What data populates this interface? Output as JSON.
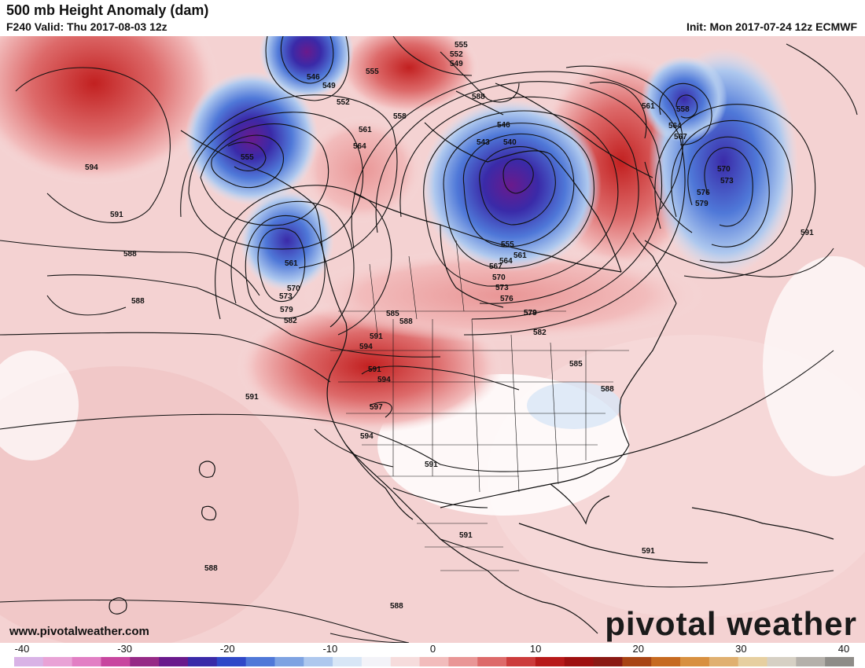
{
  "header": {
    "title": "500 mb Height Anomaly (dam)",
    "valid": "F240 Valid: Thu 2017-08-03 12z",
    "init": "Init: Mon 2017-07-24 12z ECMWF"
  },
  "footer": {
    "website": "www.pivotalweather.com",
    "brand": "pivotal weather"
  },
  "colorbar": {
    "ticks": [
      "-40",
      "-30",
      "-20",
      "-10",
      "0",
      "10",
      "20",
      "30",
      "40"
    ],
    "colors": [
      "#d9b3e6",
      "#e9a3d6",
      "#e27fc4",
      "#c8469f",
      "#962a86",
      "#6a1a8c",
      "#3a2aa8",
      "#2f48c8",
      "#4f78d8",
      "#7ea3e2",
      "#aec8ee",
      "#d8e6f6",
      "#f3f3f8",
      "#f6dcdc",
      "#f2bcbc",
      "#e99696",
      "#dd6a6a",
      "#cc3c3c",
      "#b71a1a",
      "#9e1010",
      "#8a1a14",
      "#a84414",
      "#c66a20",
      "#d89040",
      "#e0b070",
      "#e6cfa0",
      "#d6d0c4",
      "#b4b0aa",
      "#8e8c88"
    ]
  },
  "contour_labels": [
    "594",
    "591",
    "588",
    "588",
    "591",
    "588",
    "594",
    "597",
    "591",
    "594",
    "591",
    "591",
    "591",
    "588",
    "588",
    "546",
    "549",
    "552",
    "555",
    "549",
    "552",
    "555",
    "558",
    "561",
    "564",
    "546",
    "543",
    "540",
    "555",
    "561",
    "564",
    "567",
    "570",
    "573",
    "576",
    "579",
    "555",
    "561",
    "564",
    "567",
    "570",
    "573",
    "576",
    "579",
    "591",
    "561",
    "570",
    "573",
    "579",
    "582",
    "585",
    "588",
    "591",
    "594",
    "579",
    "582",
    "585",
    "588",
    "558"
  ]
}
